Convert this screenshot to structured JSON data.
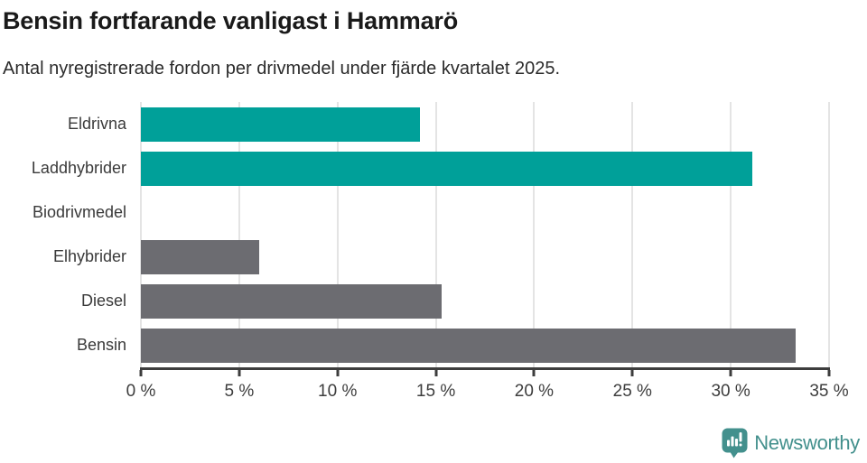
{
  "header": {
    "title": "Bensin fortfarande vanligast i Hammarö",
    "subtitle": "Antal nyregistrerade fordon per drivmedel under fjärde kvartalet 2025."
  },
  "chart_data": {
    "type": "bar",
    "orientation": "horizontal",
    "title": "Bensin fortfarande vanligast i Hammarö",
    "subtitle": "Antal nyregistrerade fordon per drivmedel under fjärde kvartalet 2025.",
    "categories": [
      "Eldrivna",
      "Laddhybrider",
      "Biodrivmedel",
      "Elhybrider",
      "Diesel",
      "Bensin"
    ],
    "values": [
      14.2,
      31.1,
      0,
      6.0,
      15.3,
      33.3
    ],
    "value_unit": "%",
    "bar_colors": [
      "#00a099",
      "#00a099",
      "#00a099",
      "#6c6c71",
      "#6c6c71",
      "#6c6c71"
    ],
    "xlim": [
      0,
      35
    ],
    "xtick_step": 5,
    "xtick_labels": [
      "0 %",
      "5 %",
      "10 %",
      "15 %",
      "20 %",
      "25 %",
      "30 %",
      "35 %"
    ],
    "grid": "vertical",
    "legend": "none",
    "colors": {
      "accent_teal": "#00a099",
      "neutral_gray": "#6c6c71",
      "gridline": "#e4e4e4",
      "axis": "#3d3d3d",
      "tick_text": "#3d3d3d"
    }
  },
  "footer": {
    "brand": "Newsworthy",
    "brand_color": "#43908d",
    "logo_icon": "newsworthy-bar-chart-bubble-icon"
  }
}
